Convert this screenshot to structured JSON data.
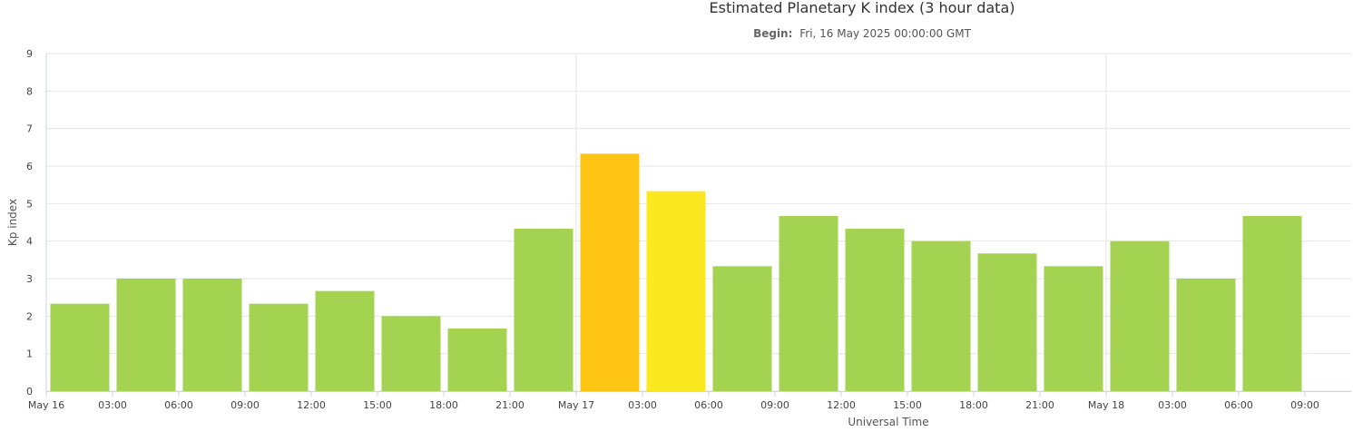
{
  "chart_data": {
    "type": "bar",
    "title": "Estimated Planetary K index (3 hour data)",
    "subtitle_label": "Begin:",
    "subtitle_value": "Fri, 16 May 2025 00:00:00 GMT",
    "xlabel": "Universal Time",
    "ylabel": "Kp index",
    "ylim": [
      0,
      9
    ],
    "yticks": [
      "0",
      "1",
      "2",
      "3",
      "4",
      "5",
      "6",
      "7",
      "8",
      "9"
    ],
    "xticks": [
      "May 16",
      "03:00",
      "06:00",
      "09:00",
      "12:00",
      "15:00",
      "18:00",
      "21:00",
      "May 17",
      "03:00",
      "06:00",
      "09:00",
      "12:00",
      "15:00",
      "18:00",
      "21:00",
      "May 18",
      "03:00",
      "06:00",
      "09:00"
    ],
    "values": [
      2.33,
      3.0,
      3.0,
      2.33,
      2.67,
      2.0,
      1.67,
      4.33,
      6.33,
      5.33,
      3.33,
      4.67,
      4.33,
      4.0,
      3.67,
      3.33,
      4.0,
      3.0,
      4.67
    ],
    "colors": {
      "below_5": "#a3d350",
      "kp_5": "#fbe81e",
      "kp_6": "#fdc413"
    },
    "grid": true,
    "legend": "none"
  }
}
